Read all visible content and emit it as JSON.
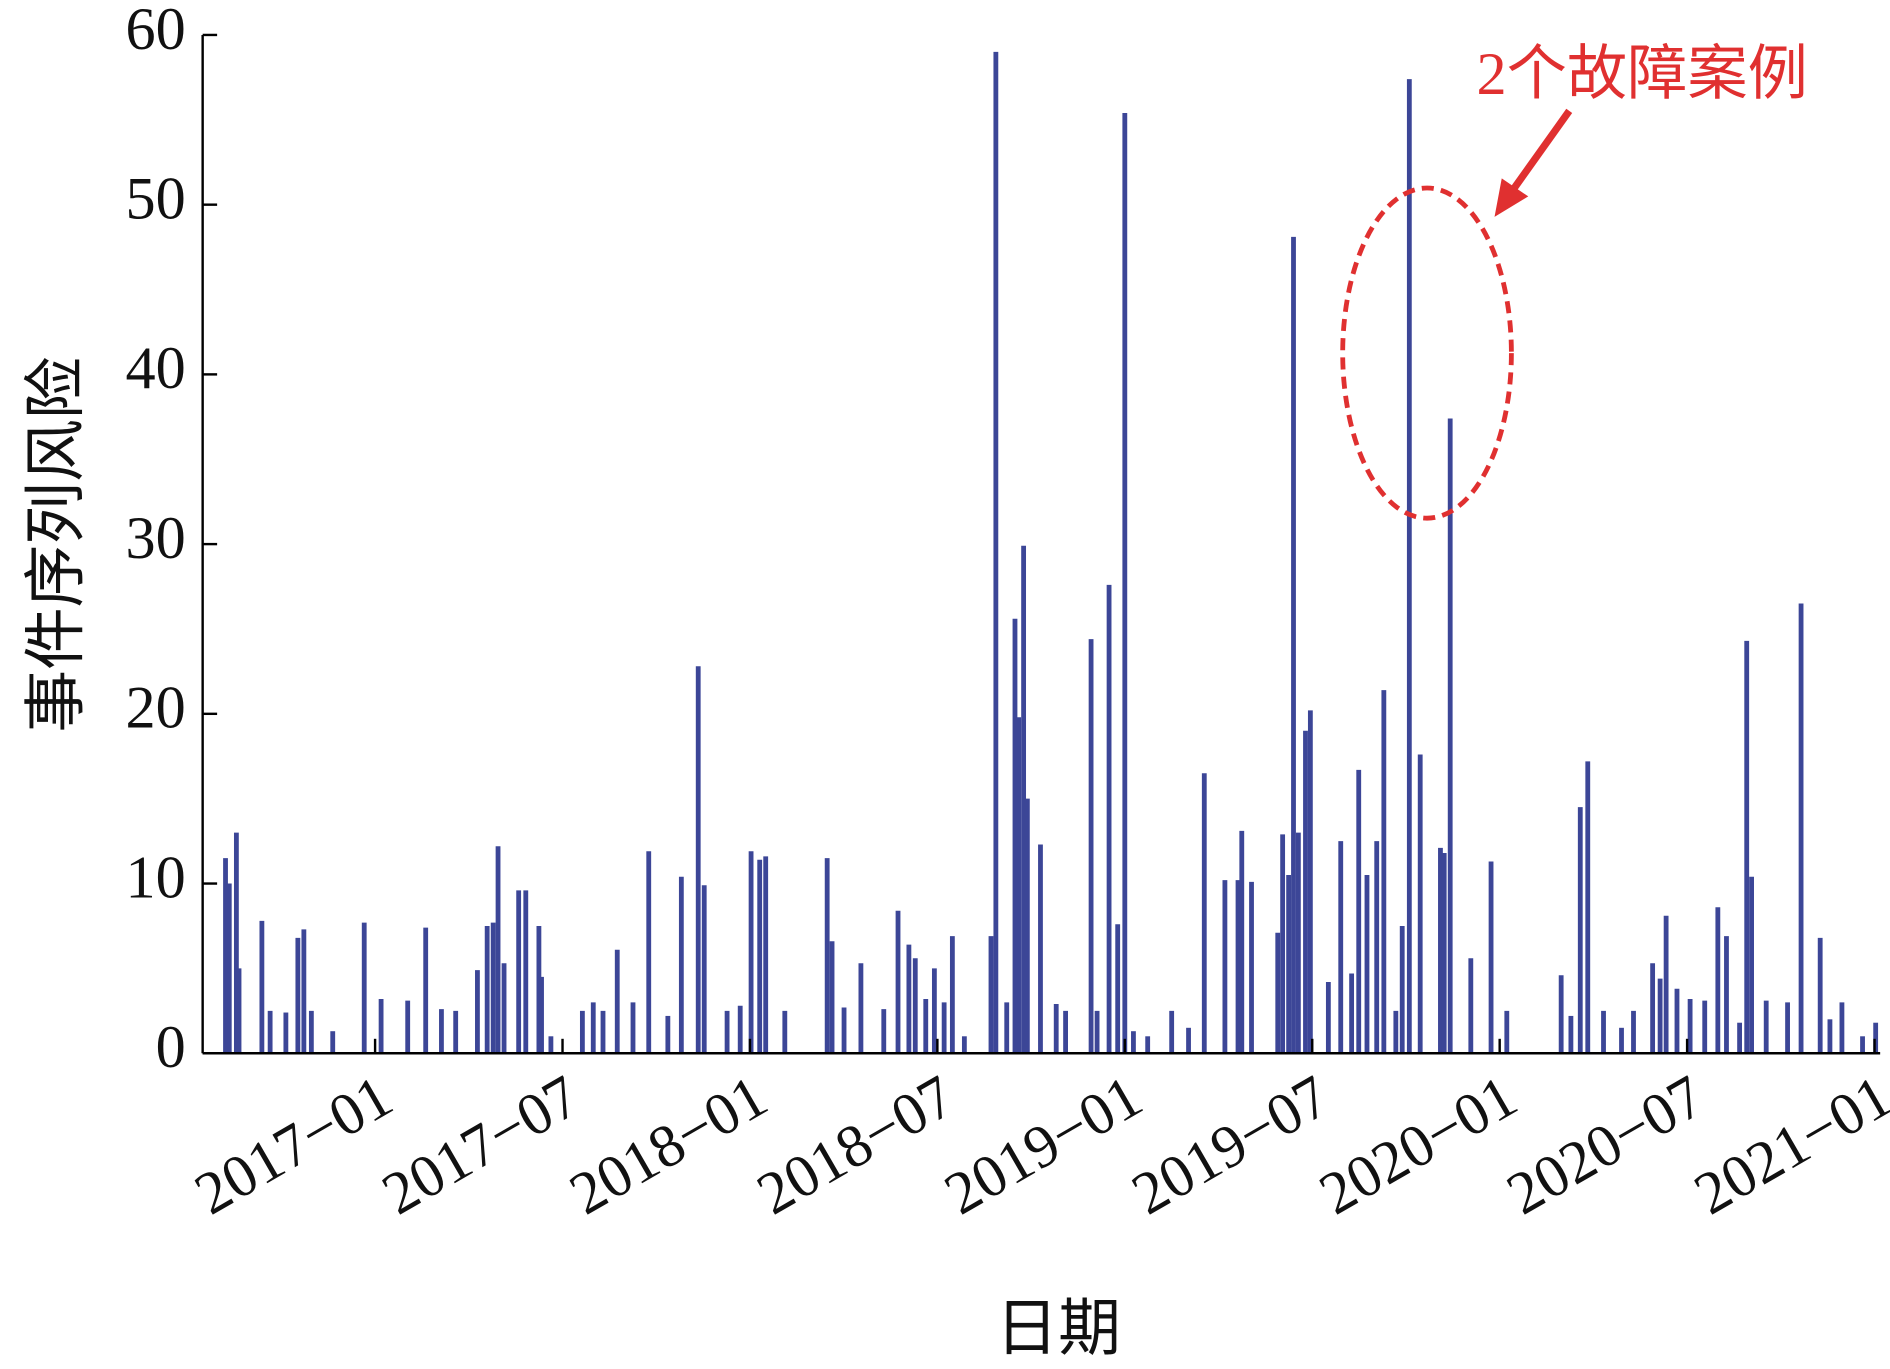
{
  "chart_data": {
    "type": "stem",
    "xlabel": "日期",
    "ylabel": "事件序列风险",
    "annotation": "2个故障案例",
    "color": "#3c4697",
    "xlim": [
      2016.54,
      2021.015
    ],
    "ylim": [
      0,
      60
    ],
    "yticks": [
      0,
      10,
      20,
      30,
      40,
      50,
      60
    ],
    "xticks": [
      {
        "value": 2017.0,
        "label": "2017−01"
      },
      {
        "value": 2017.5,
        "label": "2017−07"
      },
      {
        "value": 2018.0,
        "label": "2018−01"
      },
      {
        "value": 2018.5,
        "label": "2018−07"
      },
      {
        "value": 2019.0,
        "label": "2019−01"
      },
      {
        "value": 2019.5,
        "label": "2019−07"
      },
      {
        "value": 2020.0,
        "label": "2020−01"
      },
      {
        "value": 2020.5,
        "label": "2020−07"
      },
      {
        "value": 2021.0,
        "label": "2021−01"
      }
    ],
    "x": [
      2016.601,
      2016.611,
      2016.63,
      2016.637,
      2016.698,
      2016.72,
      2016.762,
      2016.794,
      2016.81,
      2016.83,
      2016.887,
      2016.971,
      2017.016,
      2017.087,
      2017.135,
      2017.177,
      2017.215,
      2017.273,
      2017.299,
      2017.315,
      2017.328,
      2017.344,
      2017.383,
      2017.402,
      2017.437,
      2017.444,
      2017.469,
      2017.553,
      2017.582,
      2017.608,
      2017.646,
      2017.688,
      2017.73,
      2017.781,
      2017.817,
      2017.862,
      2017.878,
      2017.939,
      2017.974,
      2018.003,
      2018.026,
      2018.042,
      2018.093,
      2018.206,
      2018.219,
      2018.251,
      2018.296,
      2018.357,
      2018.395,
      2018.424,
      2018.441,
      2018.469,
      2018.492,
      2018.518,
      2018.54,
      2018.572,
      2018.643,
      2018.656,
      2018.685,
      2018.707,
      2018.717,
      2018.73,
      2018.74,
      2018.775,
      2018.817,
      2018.842,
      2018.91,
      2018.926,
      2018.958,
      2018.981,
      2019.0,
      2019.023,
      2019.061,
      2019.125,
      2019.17,
      2019.212,
      2019.267,
      2019.302,
      2019.312,
      2019.338,
      2019.408,
      2019.421,
      2019.437,
      2019.45,
      2019.463,
      2019.482,
      2019.495,
      2019.543,
      2019.576,
      2019.605,
      2019.624,
      2019.646,
      2019.672,
      2019.691,
      2019.723,
      2019.74,
      2019.759,
      2019.788,
      2019.842,
      2019.852,
      2019.868,
      2019.923,
      2019.977,
      2020.019,
      2020.164,
      2020.19,
      2020.215,
      2020.235,
      2020.277,
      2020.325,
      2020.357,
      2020.408,
      2020.428,
      2020.444,
      2020.473,
      2020.508,
      2020.547,
      2020.582,
      2020.605,
      2020.64,
      2020.659,
      2020.672,
      2020.711,
      2020.768,
      2020.804,
      2020.855,
      2020.881,
      2020.913,
      2020.968,
      2021.003
    ],
    "values": [
      11.5,
      10,
      13,
      5,
      7.8,
      2.5,
      2.4,
      6.8,
      7.3,
      2.5,
      1.3,
      7.7,
      3.2,
      3.1,
      7.4,
      2.6,
      2.5,
      4.9,
      7.5,
      7.7,
      12.2,
      5.3,
      9.6,
      9.6,
      7.5,
      4.5,
      1,
      2.5,
      3,
      2.5,
      6.1,
      3,
      11.9,
      2.2,
      10.4,
      22.8,
      9.9,
      2.5,
      2.8,
      11.9,
      11.4,
      11.6,
      2.5,
      11.5,
      6.6,
      2.7,
      5.3,
      2.6,
      8.4,
      6.4,
      5.6,
      3.2,
      5,
      3,
      6.9,
      1,
      6.9,
      59,
      3,
      25.6,
      19.8,
      29.9,
      15,
      12.3,
      2.9,
      2.5,
      24.4,
      2.5,
      27.6,
      7.6,
      55.4,
      1.3,
      1,
      2.5,
      1.5,
      16.5,
      10.2,
      10.2,
      13.1,
      10.1,
      7.1,
      12.9,
      10.5,
      48.1,
      13,
      19,
      20.2,
      4.2,
      12.5,
      4.7,
      16.7,
      10.5,
      12.5,
      21.4,
      2.5,
      7.5,
      57.4,
      17.6,
      12.1,
      11.8,
      37.4,
      5.6,
      11.3,
      2.5,
      4.6,
      2.2,
      14.5,
      17.2,
      2.5,
      1.5,
      2.5,
      5.3,
      4.4,
      8.1,
      3.8,
      3.2,
      3.1,
      8.6,
      6.9,
      1.8,
      24.3,
      10.4,
      3.1,
      3,
      26.5,
      6.8,
      2,
      3,
      1,
      1.8
    ]
  }
}
